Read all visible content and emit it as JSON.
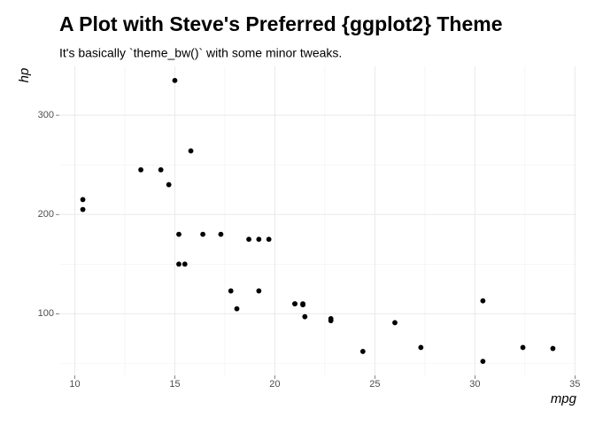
{
  "chart_data": {
    "type": "scatter",
    "title": "A Plot with Steve's Preferred {ggplot2} Theme",
    "subtitle": "It's basically `theme_bw()` with some minor tweaks.",
    "x_label": "mpg",
    "y_label": "hp",
    "x": [
      21,
      21,
      22.8,
      21.4,
      18.7,
      18.1,
      14.3,
      24.4,
      22.8,
      19.2,
      17.8,
      16.4,
      17.3,
      15.2,
      10.4,
      10.4,
      14.7,
      32.4,
      30.4,
      33.9,
      21.5,
      15.5,
      15.2,
      13.3,
      19.2,
      27.3,
      26,
      30.4,
      15.8,
      19.7,
      15,
      21.4
    ],
    "values": [
      110,
      110,
      93,
      110,
      175,
      105,
      245,
      62,
      95,
      123,
      123,
      180,
      180,
      180,
      205,
      215,
      230,
      66,
      52,
      65,
      97,
      150,
      150,
      245,
      175,
      66,
      91,
      113,
      264,
      175,
      335,
      109
    ],
    "color": "#000000",
    "xlim": [
      9.225,
      35.075
    ],
    "ylim": [
      37.85,
      349.15
    ],
    "xticks": [
      10,
      15,
      20,
      25,
      30,
      35
    ],
    "yticks": [
      100,
      200,
      300
    ],
    "grid": true,
    "minor_grid": true
  }
}
